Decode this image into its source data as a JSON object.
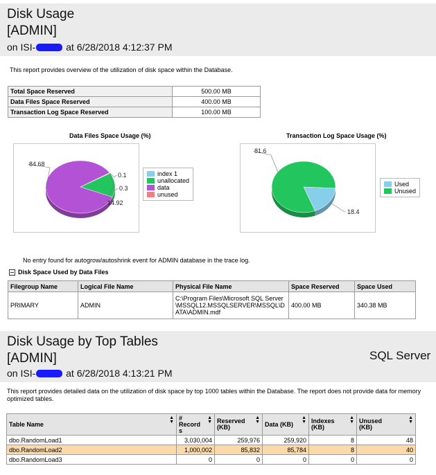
{
  "report1": {
    "title": "Disk Usage",
    "db": "[ADMIN]",
    "on_prefix": "on ISI-",
    "on_suffix": " at 6/28/2018 4:12:37 PM",
    "description": "This report provides overview of the utilization of disk space within the Database.",
    "summary": [
      {
        "label": "Total Space Reserved",
        "value": "500.00 MB"
      },
      {
        "label": "Data Files Space Reserved",
        "value": "400.00 MB"
      },
      {
        "label": "Transaction Log Space Reserved",
        "value": "100.00 MB"
      }
    ],
    "autogrow_note": "No entry found for autogrow/autoshrink event for ADMIN database in the trace log.",
    "section_label": "Disk Space Used by Data Files",
    "files_table": {
      "headers": [
        "Filegroup Name",
        "Logical File Name",
        "Physical File Name",
        "Space Reserved",
        "Space Used"
      ],
      "rows": [
        [
          "PRIMARY",
          "ADMIN",
          "C:\\Program Files\\Microsoft SQL Server\\MSSQL12.MSSQLSERVER\\MSSQL\\DATA\\ADMIN.mdf",
          "400.00 MB",
          "340.38 MB"
        ]
      ]
    }
  },
  "chart_data": [
    {
      "type": "pie",
      "title": "Data Files Space Usage (%)",
      "categories": [
        "index 1",
        "unallocated",
        "data",
        "unused"
      ],
      "values": [
        0.1,
        14.92,
        84.68,
        0.3
      ],
      "colors": [
        "#87ceeb",
        "#22c55e",
        "#b452d6",
        "#f08080"
      ],
      "data_labels": [
        "0.1",
        "14.92",
        "84.68",
        "0.3"
      ],
      "legend": "right"
    },
    {
      "type": "pie",
      "title": "Transaction Log Space Usage (%)",
      "categories": [
        "Used",
        "Unused"
      ],
      "values": [
        18.4,
        81.6
      ],
      "colors": [
        "#87ceeb",
        "#22c55e"
      ],
      "data_labels": [
        "18.4",
        "81.6"
      ],
      "legend": "right"
    }
  ],
  "report2": {
    "title": "Disk Usage by Top Tables",
    "db": "[ADMIN]",
    "on_prefix": "on ISI-",
    "on_suffix": " at 6/28/2018 4:13:21 PM",
    "brand": "SQL Server",
    "description": "This report provides detailed data on the utilization of disk space by top 1000 tables within the Database. The report does not provide data for memory optimized tables.",
    "headers": [
      "Table Name",
      "# Record s",
      "Reserved (KB)",
      "Data (KB)",
      "Indexes (KB)",
      "Unused (KB)"
    ],
    "rows": [
      [
        "dbo.RandomLoad1",
        "3,030,004",
        "259,976",
        "259,920",
        "8",
        "48"
      ],
      [
        "dbo.RandomLoad2",
        "1,000,002",
        "85,832",
        "85,784",
        "8",
        "40"
      ],
      [
        "dbo.RandomLoad3",
        "0",
        "0",
        "0",
        "0",
        "0"
      ]
    ],
    "highlighted_row": 1
  }
}
